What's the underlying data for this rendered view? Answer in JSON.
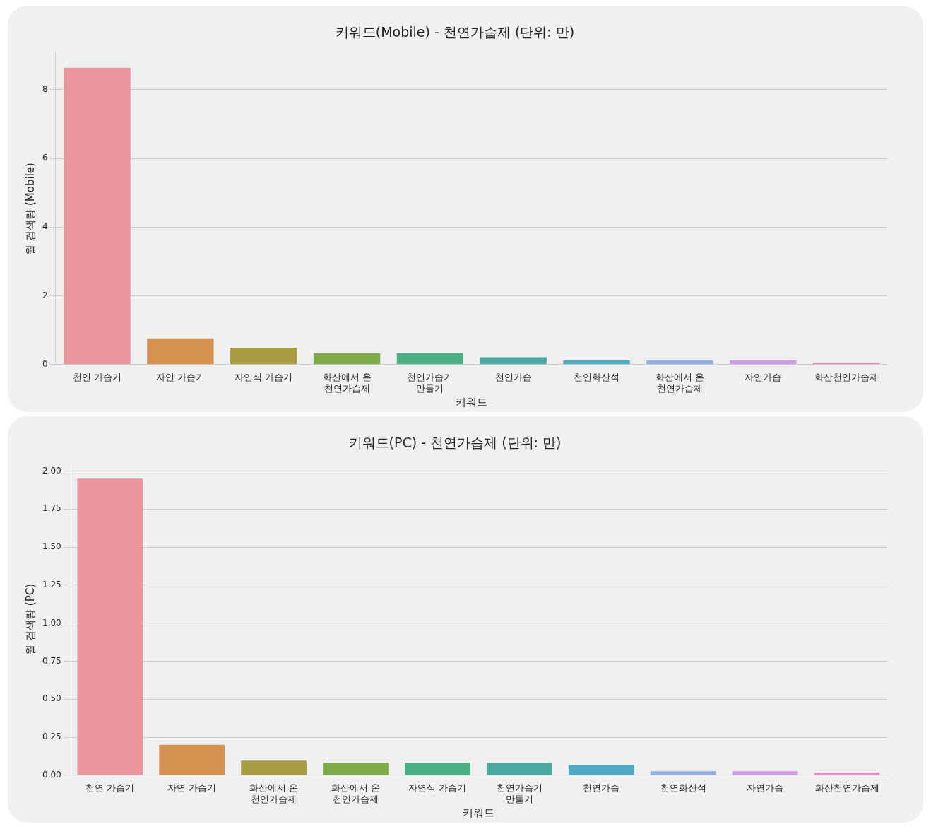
{
  "chart_data": [
    {
      "type": "bar",
      "title": "키워드(Mobile) - 천연가습제 (단위: 만)",
      "xlabel": "키워드",
      "ylabel": "월 검색량 (Mobile)",
      "categories": [
        "천연 가습기",
        "자연 가습기",
        "자연식 가습기",
        "화산에서 온 천연가습제",
        "천연가습기 만들기",
        "천연가습",
        "천연화산석",
        "화산에서 온 천연가습제",
        "자연가습",
        "화산천연가습제"
      ],
      "values": [
        8.64,
        0.76,
        0.49,
        0.33,
        0.33,
        0.21,
        0.12,
        0.12,
        0.12,
        0.06
      ],
      "colors": [
        "#e9969f",
        "#d69150",
        "#a89c45",
        "#7eaa47",
        "#4aae81",
        "#4ba9a2",
        "#4eaac4",
        "#93ade6",
        "#d09ae8",
        "#e78fc6"
      ],
      "ylim": [
        0,
        9.07
      ],
      "yticks": [
        0,
        2,
        4,
        6,
        8
      ],
      "grid": "y",
      "legend": false
    },
    {
      "type": "bar",
      "title": "키워드(PC) - 천연가습제 (단위: 만)",
      "xlabel": "키워드",
      "ylabel": "월 검색량 (PC)",
      "categories": [
        "천연 가습기",
        "자연 가습기",
        "화산에서 온 천연가습제",
        "화산에서 온 천연가습제",
        "자연식 가습기",
        "천연가습기 만들기",
        "천연가습",
        "천연화산석",
        "자연가습",
        "화산천연가습제"
      ],
      "values": [
        1.95,
        0.2,
        0.096,
        0.083,
        0.083,
        0.079,
        0.066,
        0.026,
        0.026,
        0.018
      ],
      "colors": [
        "#e9969f",
        "#d69150",
        "#a89c45",
        "#7eaa47",
        "#4aae81",
        "#4ba9a2",
        "#4eaac4",
        "#93ade6",
        "#d09ae8",
        "#e78fc6"
      ],
      "ylim": [
        0,
        2.05
      ],
      "yticks": [
        {
          "value": 0,
          "label": "0.00"
        },
        {
          "value": 0.25,
          "label": "0.25"
        },
        {
          "value": 0.5,
          "label": "0.50"
        },
        {
          "value": 0.75,
          "label": "0.75"
        },
        {
          "value": 1,
          "label": "1.00"
        },
        {
          "value": 1.25,
          "label": "1.25"
        },
        {
          "value": 1.5,
          "label": "1.50"
        },
        {
          "value": 1.75,
          "label": "1.75"
        },
        {
          "value": 2,
          "label": "2.00"
        }
      ],
      "grid": "y",
      "legend": false
    }
  ]
}
